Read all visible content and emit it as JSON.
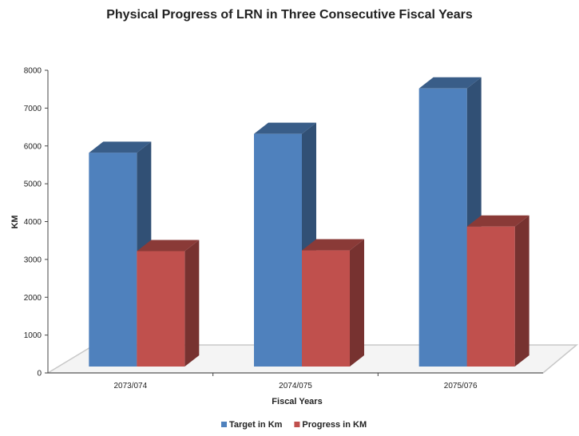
{
  "chart_data": {
    "type": "bar",
    "title": "Physical Progress of LRN in Three Consecutive Fiscal Years",
    "xlabel": "Fiscal Years",
    "ylabel": "KM",
    "categories": [
      "2073/074",
      "2074/075",
      "2075/076"
    ],
    "series": [
      {
        "name": "Target in Km",
        "values": [
          5650,
          6150,
          7350
        ],
        "color": "#4f81bd"
      },
      {
        "name": "Progress in KM",
        "values": [
          3050,
          3070,
          3700
        ],
        "color": "#c0504d"
      }
    ],
    "ylim": [
      0,
      8000
    ],
    "yticks": [
      0,
      1000,
      2000,
      3000,
      4000,
      5000,
      6000,
      7000,
      8000
    ],
    "legend_position": "bottom",
    "grid": false,
    "style": "3d-clustered-column"
  }
}
